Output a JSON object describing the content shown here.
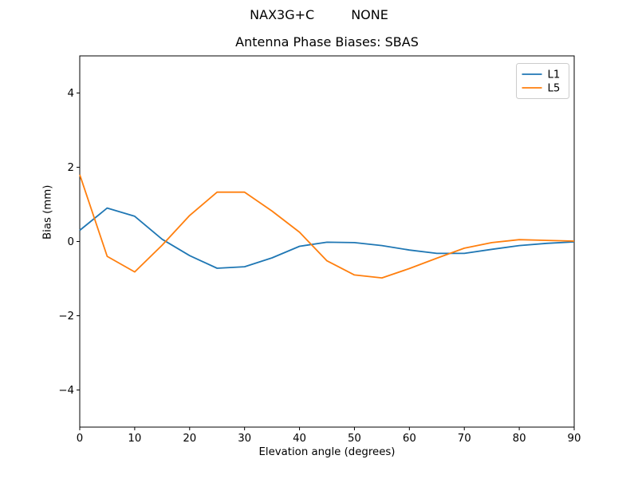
{
  "figure": {
    "suptitle_left": "NAX3G+C",
    "suptitle_right": "NONE"
  },
  "chart_data": {
    "type": "line",
    "title": "Antenna Phase Biases: SBAS",
    "xlabel": "Elevation angle (degrees)",
    "ylabel": "Bias (mm)",
    "xlim": [
      0,
      90
    ],
    "ylim": [
      -5,
      5
    ],
    "x_ticks": [
      0,
      10,
      20,
      30,
      40,
      50,
      60,
      70,
      80,
      90
    ],
    "y_ticks": [
      -4,
      -2,
      0,
      2,
      4
    ],
    "grid": false,
    "legend_position": "upper right",
    "background": "#ffffff",
    "spine_color": "#000000",
    "legend_border_color": "#cccccc",
    "x": [
      0,
      5,
      10,
      15,
      20,
      25,
      30,
      35,
      40,
      45,
      50,
      55,
      60,
      65,
      70,
      75,
      80,
      85,
      90
    ],
    "series": [
      {
        "name": "L1",
        "color": "#1f77b4",
        "values": [
          0.3,
          0.9,
          0.68,
          0.06,
          -0.38,
          -0.72,
          -0.68,
          -0.44,
          -0.13,
          -0.02,
          -0.03,
          -0.11,
          -0.23,
          -0.32,
          -0.32,
          -0.21,
          -0.11,
          -0.05,
          -0.01
        ]
      },
      {
        "name": "L5",
        "color": "#ff7f0e",
        "values": [
          1.8,
          -0.4,
          -0.82,
          -0.1,
          0.7,
          1.33,
          1.33,
          0.82,
          0.25,
          -0.52,
          -0.9,
          -0.98,
          -0.73,
          -0.45,
          -0.18,
          -0.03,
          0.05,
          0.03,
          0.01
        ]
      }
    ]
  }
}
